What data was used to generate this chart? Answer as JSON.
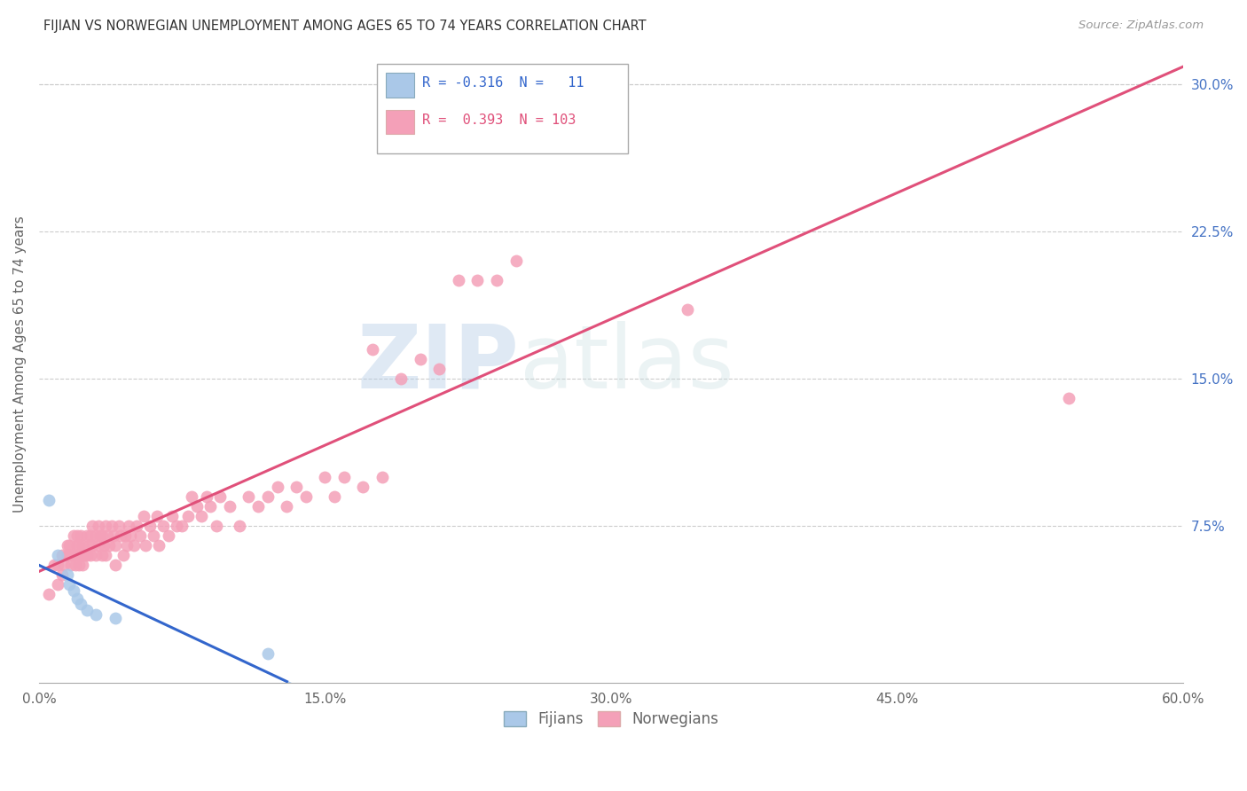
{
  "title": "FIJIAN VS NORWEGIAN UNEMPLOYMENT AMONG AGES 65 TO 74 YEARS CORRELATION CHART",
  "source": "Source: ZipAtlas.com",
  "ylabel": "Unemployment Among Ages 65 to 74 years",
  "xlim": [
    0.0,
    0.6
  ],
  "ylim": [
    -0.005,
    0.32
  ],
  "xticks": [
    0.0,
    0.15,
    0.3,
    0.45,
    0.6
  ],
  "xticklabels": [
    "0.0%",
    "15.0%",
    "30.0%",
    "45.0%",
    "60.0%"
  ],
  "yticks_right": [
    0.075,
    0.15,
    0.225,
    0.3
  ],
  "yticklabels_right": [
    "7.5%",
    "15.0%",
    "22.5%",
    "30.0%"
  ],
  "legend_label1": "Fijians",
  "legend_label2": "Norwegians",
  "fijian_color": "#aac8e8",
  "fijian_line_color": "#3366cc",
  "fijian_dash_color": "#aac8e8",
  "norwegian_color": "#f4a0b8",
  "norwegian_line_color": "#e0507a",
  "watermark_zip": "ZIP",
  "watermark_atlas": "atlas",
  "background_color": "#ffffff",
  "grid_color": "#cccccc",
  "fijian_x": [
    0.005,
    0.01,
    0.015,
    0.016,
    0.018,
    0.02,
    0.022,
    0.025,
    0.03,
    0.04,
    0.12
  ],
  "fijian_y": [
    0.088,
    0.06,
    0.05,
    0.045,
    0.042,
    0.038,
    0.035,
    0.032,
    0.03,
    0.028,
    0.01
  ],
  "norwegian_x": [
    0.005,
    0.008,
    0.01,
    0.01,
    0.012,
    0.012,
    0.013,
    0.015,
    0.015,
    0.016,
    0.016,
    0.017,
    0.018,
    0.018,
    0.019,
    0.02,
    0.02,
    0.02,
    0.021,
    0.021,
    0.022,
    0.022,
    0.023,
    0.023,
    0.024,
    0.025,
    0.025,
    0.026,
    0.027,
    0.027,
    0.028,
    0.028,
    0.03,
    0.03,
    0.031,
    0.031,
    0.032,
    0.033,
    0.033,
    0.034,
    0.035,
    0.035,
    0.036,
    0.037,
    0.038,
    0.039,
    0.04,
    0.04,
    0.042,
    0.043,
    0.044,
    0.045,
    0.046,
    0.047,
    0.048,
    0.05,
    0.051,
    0.053,
    0.055,
    0.056,
    0.058,
    0.06,
    0.062,
    0.063,
    0.065,
    0.068,
    0.07,
    0.072,
    0.075,
    0.078,
    0.08,
    0.083,
    0.085,
    0.088,
    0.09,
    0.093,
    0.095,
    0.1,
    0.105,
    0.11,
    0.115,
    0.12,
    0.125,
    0.13,
    0.135,
    0.14,
    0.15,
    0.155,
    0.16,
    0.17,
    0.175,
    0.18,
    0.19,
    0.2,
    0.21,
    0.22,
    0.23,
    0.24,
    0.25,
    0.28,
    0.29,
    0.34,
    0.54
  ],
  "norwegian_y": [
    0.04,
    0.055,
    0.045,
    0.055,
    0.05,
    0.06,
    0.055,
    0.06,
    0.065,
    0.06,
    0.065,
    0.055,
    0.06,
    0.07,
    0.055,
    0.065,
    0.06,
    0.07,
    0.055,
    0.065,
    0.06,
    0.07,
    0.055,
    0.065,
    0.06,
    0.06,
    0.07,
    0.065,
    0.07,
    0.06,
    0.065,
    0.075,
    0.07,
    0.06,
    0.065,
    0.075,
    0.07,
    0.06,
    0.07,
    0.065,
    0.075,
    0.06,
    0.07,
    0.065,
    0.075,
    0.07,
    0.055,
    0.065,
    0.075,
    0.07,
    0.06,
    0.07,
    0.065,
    0.075,
    0.07,
    0.065,
    0.075,
    0.07,
    0.08,
    0.065,
    0.075,
    0.07,
    0.08,
    0.065,
    0.075,
    0.07,
    0.08,
    0.075,
    0.075,
    0.08,
    0.09,
    0.085,
    0.08,
    0.09,
    0.085,
    0.075,
    0.09,
    0.085,
    0.075,
    0.09,
    0.085,
    0.09,
    0.095,
    0.085,
    0.095,
    0.09,
    0.1,
    0.09,
    0.1,
    0.095,
    0.165,
    0.1,
    0.15,
    0.16,
    0.155,
    0.2,
    0.2,
    0.2,
    0.21,
    0.27,
    0.295,
    0.185,
    0.14
  ]
}
